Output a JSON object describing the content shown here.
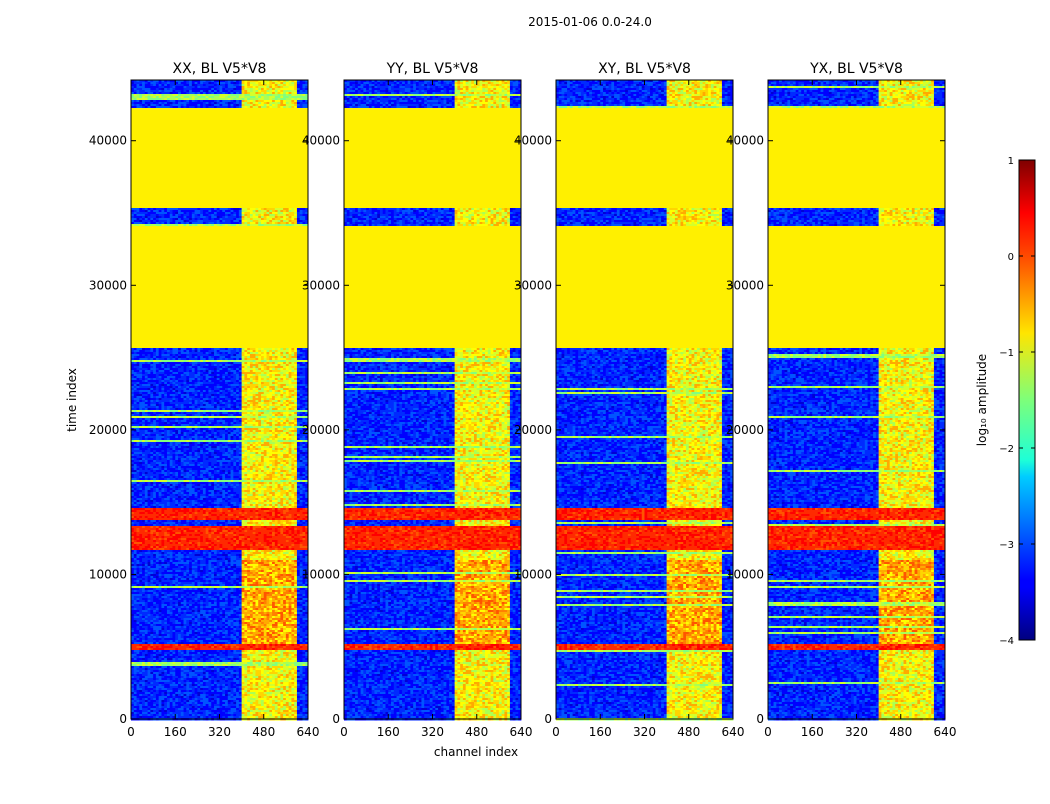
{
  "chart_data": {
    "type": "heatmap",
    "suptitle": "2015-01-06 0.0-24.0",
    "xlabel": "channel index",
    "ylabel": "time index",
    "xlim": [
      0,
      640
    ],
    "ylim": [
      0,
      44200
    ],
    "xticks": [
      0,
      160,
      320,
      480,
      640
    ],
    "yticks": [
      0,
      10000,
      20000,
      30000,
      40000
    ],
    "colorbar": {
      "label": "log₁₀ amplitude",
      "range": [
        -4,
        1
      ],
      "ticks": [
        1,
        0,
        -1,
        -2,
        -3,
        -4
      ],
      "tick_labels": [
        "1",
        "0",
        "−1",
        "−2",
        "−3",
        "−4"
      ]
    },
    "panels": [
      {
        "title": "XX, BL V5*V8",
        "band_channels": [
          405,
          600
        ]
      },
      {
        "title": "YY, BL V5*V8",
        "band_channels": [
          400,
          600
        ]
      },
      {
        "title": "XY, BL V5*V8",
        "band_channels": [
          405,
          600
        ]
      },
      {
        "title": "YX, BL V5*V8",
        "band_channels": [
          405,
          600
        ]
      }
    ],
    "flagged_time_ranges": [
      [
        25600,
        34100
      ],
      [
        35400,
        42300
      ]
    ],
    "flagged_value": -0.8,
    "background_value": -3.2,
    "high_amplitude_time_ranges": [
      [
        4800,
        5200
      ],
      [
        11700,
        12600
      ],
      [
        12700,
        13300
      ],
      [
        13800,
        14600
      ]
    ]
  }
}
